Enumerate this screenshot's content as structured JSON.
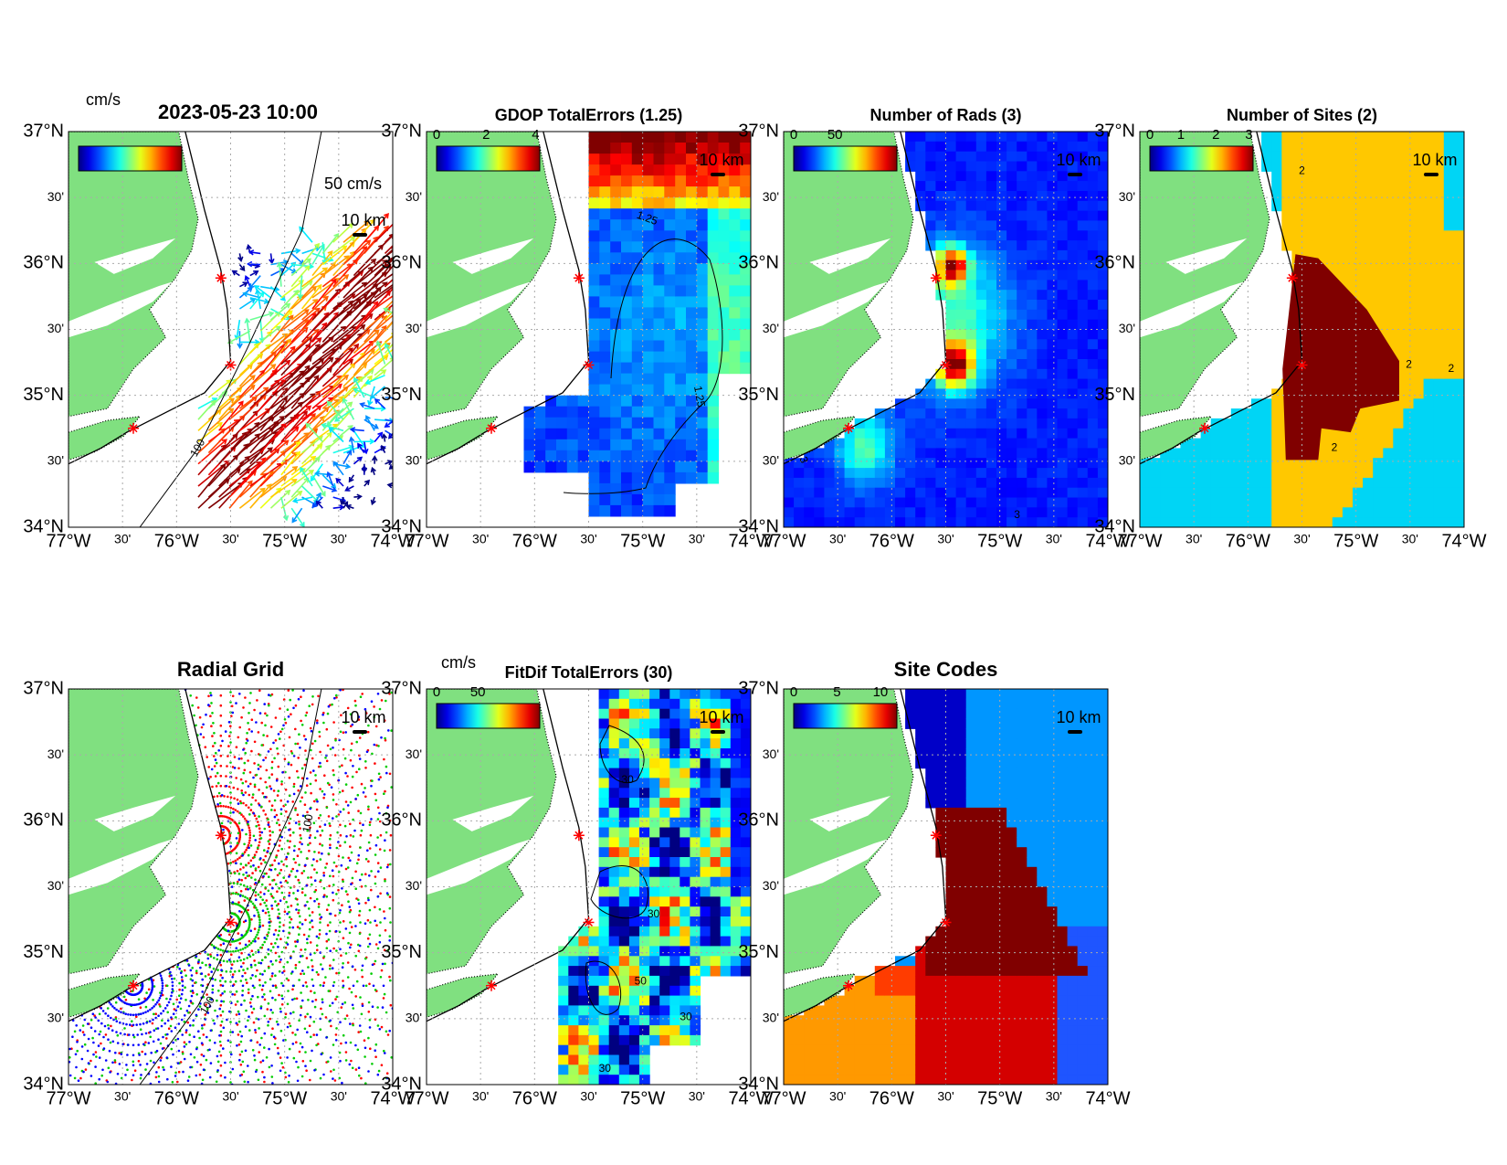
{
  "lat_labels": [
    "37°N",
    "30'",
    "36°N",
    "30'",
    "35°N",
    "30'",
    "34°N"
  ],
  "lon_labels": [
    "77°W",
    "30'",
    "76°W",
    "30'",
    "75°W",
    "30'",
    "74°W"
  ],
  "panels": [
    {
      "title": "2023-05-23 10:00",
      "colorbar_label": "cm/s",
      "vector_scale": "50 cm/s",
      "scale": "10 km",
      "contour_labels": [
        "100"
      ]
    },
    {
      "title": "GDOP TotalErrors (1.25)",
      "colorbar_ticks": [
        "0",
        "2",
        "4"
      ],
      "scale": "10 km",
      "contour_labels": [
        "1.25",
        "1.25"
      ]
    },
    {
      "title": "Number of Rads (3)",
      "colorbar_ticks": [
        "0",
        "50"
      ],
      "scale": "10 km",
      "contour_labels": [
        "3",
        "3"
      ]
    },
    {
      "title": "Number of Sites (2)",
      "colorbar_ticks": [
        "0",
        "1",
        "2",
        "3"
      ],
      "scale": "10 km",
      "contour_labels": [
        "2",
        "2",
        "2",
        "2"
      ]
    },
    {
      "title": "Radial Grid",
      "scale": "10 km",
      "contour_labels": [
        "100",
        "100"
      ]
    },
    {
      "title": "FitDif TotalErrors (30)",
      "colorbar_label": "cm/s",
      "colorbar_ticks": [
        "0",
        "50"
      ],
      "scale": "10 km",
      "contour_labels": [
        "30",
        "30",
        "30",
        "50",
        "30"
      ]
    },
    {
      "title": "Site Codes",
      "colorbar_ticks": [
        "0",
        "5",
        "10"
      ],
      "scale": "10 km"
    }
  ]
}
